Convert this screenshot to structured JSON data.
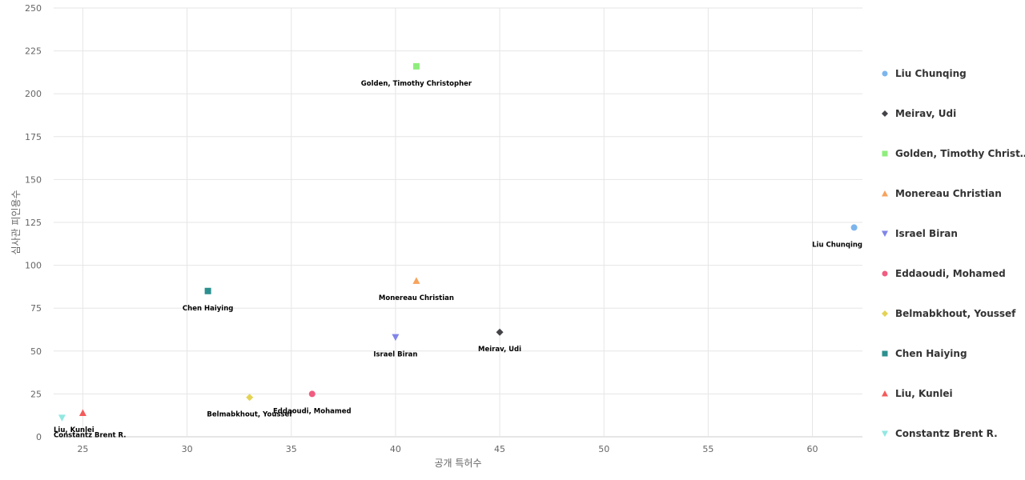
{
  "chart_data": {
    "type": "scatter",
    "title": "",
    "xlabel": "공개 특허수",
    "ylabel": "심사관 피인용수",
    "xlim": [
      23.6,
      62.4
    ],
    "ylim": [
      0,
      250
    ],
    "xticks": [
      25,
      30,
      35,
      40,
      45,
      50,
      55,
      60
    ],
    "yticks": [
      0,
      25,
      50,
      75,
      100,
      125,
      150,
      175,
      200,
      225,
      250
    ],
    "grid": true,
    "legend_position": "right",
    "series": [
      {
        "name": "Liu Chunqing",
        "label": "Liu Chunqing",
        "legend_label": "Liu Chunqing",
        "marker": "circle",
        "color": "#7cb5ec",
        "points": [
          {
            "x": 62,
            "y": 122
          }
        ]
      },
      {
        "name": "Meirav, Udi",
        "label": "Meirav, Udi",
        "legend_label": "Meirav, Udi",
        "marker": "diamond",
        "color": "#434348",
        "points": [
          {
            "x": 45,
            "y": 61
          }
        ]
      },
      {
        "name": "Golden, Timothy Christopher",
        "label": "Golden, Timothy Christopher",
        "legend_label": "Golden, Timothy Christ…",
        "marker": "square",
        "color": "#90ed7d",
        "points": [
          {
            "x": 41,
            "y": 216
          }
        ]
      },
      {
        "name": "Monereau Christian",
        "label": "Monereau Christian",
        "legend_label": "Monereau Christian",
        "marker": "triangle",
        "color": "#f7a35c",
        "points": [
          {
            "x": 41,
            "y": 91
          }
        ]
      },
      {
        "name": "Israel Biran",
        "label": "Israel Biran",
        "legend_label": "Israel Biran",
        "marker": "triangle-down",
        "color": "#8085e9",
        "points": [
          {
            "x": 40,
            "y": 58
          }
        ]
      },
      {
        "name": "Eddaoudi, Mohamed",
        "label": "Eddaoudi, Mohamed",
        "legend_label": "Eddaoudi, Mohamed",
        "marker": "circle",
        "color": "#f15c80",
        "points": [
          {
            "x": 36,
            "y": 25
          }
        ]
      },
      {
        "name": "Belmabkhout, Youssef",
        "label": "Belmabkhout, Youssef",
        "legend_label": "Belmabkhout, Youssef",
        "marker": "diamond",
        "color": "#e4d354",
        "points": [
          {
            "x": 33,
            "y": 23
          }
        ]
      },
      {
        "name": "Chen Haiying",
        "label": "Chen Haiying",
        "legend_label": "Chen Haiying",
        "marker": "square",
        "color": "#2b908f",
        "points": [
          {
            "x": 31,
            "y": 85
          }
        ]
      },
      {
        "name": "Liu, Kunlei",
        "label": "Liu, Kunlei",
        "legend_label": "Liu, Kunlei",
        "marker": "triangle",
        "color": "#f45b5b",
        "points": [
          {
            "x": 25,
            "y": 14
          }
        ]
      },
      {
        "name": "Constantz Brent R.",
        "label": "Constantz Brent R.",
        "legend_label": "Constantz Brent R.",
        "marker": "triangle-down",
        "color": "#91e8e1",
        "points": [
          {
            "x": 24,
            "y": 11
          }
        ]
      }
    ]
  }
}
